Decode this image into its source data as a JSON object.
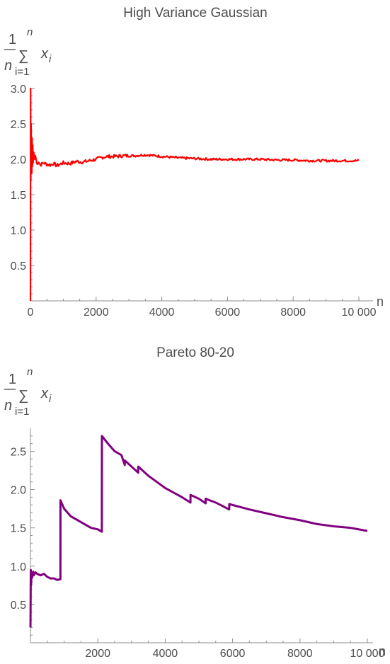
{
  "chart_data": [
    {
      "type": "line",
      "title": "High Variance Gaussian",
      "xlabel": "n",
      "ylabel": {
        "numerator": "1",
        "denominator": "n",
        "sum_top": "n",
        "sum_bottom": "i=1",
        "term": "x",
        "subscript": "i"
      },
      "xlim": [
        0,
        10000
      ],
      "ylim": [
        0,
        3.0
      ],
      "x_ticks": [
        0,
        2000,
        4000,
        6000,
        8000,
        10000
      ],
      "x_tick_labels": [
        "0",
        "2000",
        "4000",
        "6000",
        "8000",
        "10 000"
      ],
      "y_ticks": [
        0.5,
        1.0,
        1.5,
        2.0,
        2.5,
        3.0
      ],
      "y_tick_labels": [
        "0.5",
        "1.0",
        "1.5",
        "2.0",
        "2.5",
        "3.0"
      ],
      "color": "#ff0000",
      "grid": false,
      "series": [
        {
          "x": [
            1,
            5,
            10,
            20,
            30,
            40,
            50,
            60,
            70,
            80,
            100,
            120,
            150,
            200,
            250,
            300,
            400,
            500,
            600,
            700,
            800,
            900,
            1000,
            1200,
            1400,
            1600,
            1800,
            2000,
            2200,
            2400,
            2600,
            2800,
            3000,
            3200,
            3400,
            3600,
            3800,
            4000,
            4500,
            5000,
            5500,
            6000,
            6500,
            7000,
            7500,
            8000,
            8500,
            9000,
            9500,
            10000
          ],
          "y": [
            0.0,
            3.0,
            1.7,
            2.5,
            2.1,
            1.8,
            2.3,
            1.9,
            2.2,
            1.95,
            2.1,
            2.0,
            2.05,
            1.93,
            1.97,
            1.92,
            1.95,
            1.93,
            1.92,
            1.94,
            1.91,
            1.93,
            1.95,
            1.94,
            1.97,
            1.96,
            1.98,
            2.0,
            2.03,
            2.04,
            2.04,
            2.05,
            2.05,
            2.05,
            2.06,
            2.06,
            2.05,
            2.04,
            2.02,
            2.01,
            2.0,
            2.0,
            2.0,
            2.0,
            1.99,
            1.99,
            1.98,
            1.98,
            1.98,
            1.98
          ]
        }
      ]
    },
    {
      "type": "line",
      "title": "Pareto 80-20",
      "xlabel": "n",
      "ylabel": {
        "numerator": "1",
        "denominator": "n",
        "sum_top": "n",
        "sum_bottom": "i=1",
        "term": "x",
        "subscript": "i"
      },
      "xlim": [
        0,
        10000
      ],
      "ylim": [
        0,
        2.8
      ],
      "x_ticks": [
        2000,
        4000,
        6000,
        8000,
        10000
      ],
      "x_tick_labels": [
        "2000",
        "4000",
        "6000",
        "8000",
        "10 000"
      ],
      "y_ticks": [
        0.5,
        1.0,
        1.5,
        2.0,
        2.5
      ],
      "y_tick_labels": [
        "0.5",
        "1.0",
        "1.5",
        "2.0",
        "2.5"
      ],
      "color": "#800080",
      "grid": false,
      "series": [
        {
          "x": [
            1,
            10,
            20,
            30,
            50,
            80,
            100,
            150,
            200,
            300,
            400,
            500,
            600,
            700,
            800,
            890,
            891,
            1000,
            1200,
            1400,
            1600,
            1800,
            2000,
            2120,
            2121,
            2300,
            2500,
            2700,
            2800,
            2801,
            3000,
            3200,
            3201,
            3500,
            4000,
            4500,
            4750,
            4751,
            5000,
            5200,
            5201,
            5500,
            5900,
            5901,
            6500,
            7000,
            7500,
            8000,
            8500,
            9000,
            9500,
            10000
          ],
          "y": [
            0.2,
            0.95,
            0.75,
            0.9,
            0.85,
            0.93,
            0.88,
            0.92,
            0.9,
            0.88,
            0.9,
            0.86,
            0.84,
            0.84,
            0.82,
            0.83,
            1.86,
            1.75,
            1.65,
            1.6,
            1.55,
            1.5,
            1.48,
            1.45,
            2.7,
            2.6,
            2.5,
            2.45,
            2.32,
            2.38,
            2.3,
            2.22,
            2.3,
            2.18,
            2.02,
            1.9,
            1.83,
            1.93,
            1.88,
            1.82,
            1.88,
            1.83,
            1.74,
            1.81,
            1.74,
            1.69,
            1.64,
            1.6,
            1.55,
            1.52,
            1.5,
            1.46
          ]
        }
      ]
    }
  ]
}
